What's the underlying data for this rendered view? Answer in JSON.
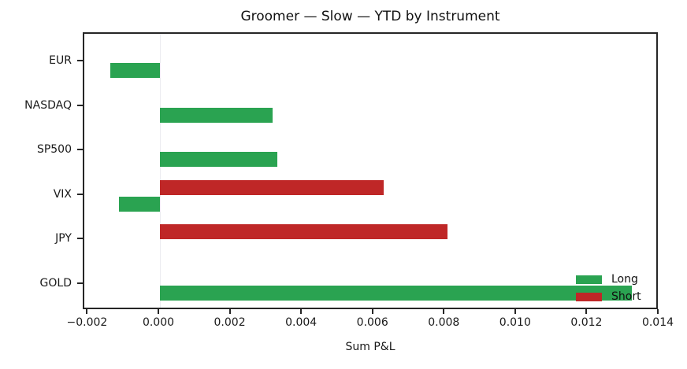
{
  "title": "Groomer — Slow — YTD by Instrument",
  "chart_data": {
    "type": "bar",
    "orientation": "horizontal",
    "title": "Groomer — Slow — YTD by Instrument",
    "xlabel": "Sum P&L",
    "ylabel": "",
    "categories": [
      "EUR",
      "NASDAQ",
      "SP500",
      "VIX",
      "JPY",
      "GOLD"
    ],
    "series": [
      {
        "name": "Long",
        "color": "#2aa351",
        "values": [
          -0.00139,
          0.00315,
          0.00329,
          -0.00115,
          null,
          0.01322
        ]
      },
      {
        "name": "Short",
        "color": "#bf2727",
        "values": [
          null,
          null,
          null,
          0.00627,
          0.00807,
          null
        ]
      }
    ],
    "xticks": [
      -0.002,
      0,
      0.002,
      0.004,
      0.006,
      0.008,
      0.01,
      0.012,
      0.014
    ],
    "xtick_labels": [
      "−0.002",
      "0.000",
      "0.002",
      "0.004",
      "0.006",
      "0.008",
      "0.010",
      "0.012",
      "0.014"
    ],
    "xlim": [
      -0.00212,
      0.014
    ],
    "grid": "zero-line-only",
    "legend": {
      "position": "lower right",
      "frame": false,
      "entries": [
        "Long",
        "Short"
      ]
    }
  },
  "colors": {
    "long": "#2aa351",
    "short": "#bf2727",
    "spine": "#262626",
    "text": "#1a1a1a",
    "zero_line": "#ececf1",
    "background": "#ffffff"
  }
}
